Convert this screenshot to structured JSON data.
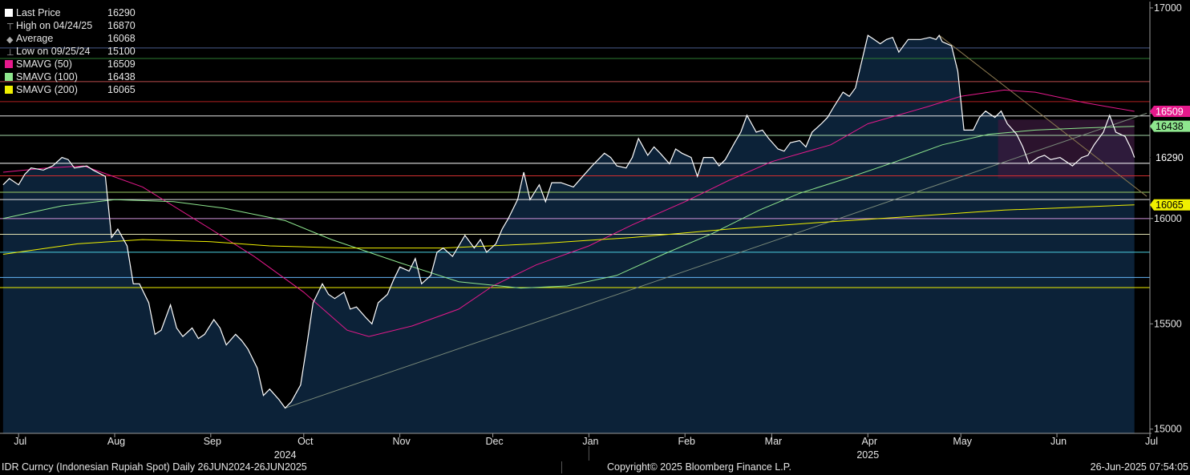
{
  "legend": [
    {
      "label": "Last Price",
      "value": "16290",
      "color": "#ffffff",
      "symbol": "square"
    },
    {
      "label": "High on 04/24/25",
      "value": "16870",
      "color": "#aaaaaa",
      "symbol": "high-marker-icon"
    },
    {
      "label": "Average",
      "value": "16068",
      "color": "#aaaaaa",
      "symbol": "average-marker-icon"
    },
    {
      "label": "Low on 09/25/24",
      "value": "15100",
      "color": "#aaaaaa",
      "symbol": "low-marker-icon"
    },
    {
      "label": "SMAVG (50)",
      "value": "16509",
      "color": "#e6198c",
      "symbol": "square"
    },
    {
      "label": "SMAVG (100)",
      "value": "16438",
      "color": "#8ee68e",
      "symbol": "square"
    },
    {
      "label": "SMAVG (200)",
      "value": "16065",
      "color": "#f0f000",
      "symbol": "square"
    }
  ],
  "footer": {
    "left": "IDR Curncy (Indonesian Rupiah Spot)  Daily 26JUN2024-26JUN2025",
    "center": "Copyright© 2025 Bloomberg Finance L.P.",
    "right": "26-Jun-2025 07:54:05"
  },
  "chart_data": {
    "type": "area",
    "ylim": [
      14980,
      17030
    ],
    "yticks": [
      15000,
      15500,
      16000,
      16500,
      17000
    ],
    "xlim": [
      "2024-06-25",
      "2025-07-01"
    ],
    "xticks": [
      {
        "date": "2024-07-01",
        "label": "Jul"
      },
      {
        "date": "2024-08-01",
        "label": "Aug"
      },
      {
        "date": "2024-09-01",
        "label": "Sep"
      },
      {
        "date": "2024-10-01",
        "label": "Oct"
      },
      {
        "date": "2024-11-01",
        "label": "Nov"
      },
      {
        "date": "2024-12-01",
        "label": "Dec"
      },
      {
        "date": "2025-01-01",
        "label": "Jan"
      },
      {
        "date": "2025-02-01",
        "label": "Feb"
      },
      {
        "date": "2025-03-01",
        "label": "Mar"
      },
      {
        "date": "2025-04-01",
        "label": "Apr"
      },
      {
        "date": "2025-05-01",
        "label": "May"
      },
      {
        "date": "2025-06-01",
        "label": "Jun"
      },
      {
        "date": "2025-07-01",
        "label": "Jul"
      }
    ],
    "year_labels": [
      {
        "date": "2024-09-25",
        "label": "2024"
      },
      {
        "date": "2025-04-01",
        "label": "2025"
      }
    ],
    "year_divider": "2025-01-01",
    "price_series": {
      "name": "Last Price",
      "color": "#ffffff",
      "fill": "#0c2238",
      "points": [
        [
          "2024-06-26",
          16160
        ],
        [
          "2024-06-28",
          16190
        ],
        [
          "2024-07-01",
          16160
        ],
        [
          "2024-07-03",
          16210
        ],
        [
          "2024-07-05",
          16240
        ],
        [
          "2024-07-09",
          16230
        ],
        [
          "2024-07-12",
          16250
        ],
        [
          "2024-07-15",
          16290
        ],
        [
          "2024-07-17",
          16280
        ],
        [
          "2024-07-19",
          16240
        ],
        [
          "2024-07-23",
          16250
        ],
        [
          "2024-07-25",
          16230
        ],
        [
          "2024-07-29",
          16200
        ],
        [
          "2024-07-31",
          15910
        ],
        [
          "2024-08-02",
          15950
        ],
        [
          "2024-08-05",
          15870
        ],
        [
          "2024-08-07",
          15690
        ],
        [
          "2024-08-09",
          15690
        ],
        [
          "2024-08-12",
          15600
        ],
        [
          "2024-08-14",
          15450
        ],
        [
          "2024-08-16",
          15470
        ],
        [
          "2024-08-19",
          15590
        ],
        [
          "2024-08-21",
          15480
        ],
        [
          "2024-08-23",
          15440
        ],
        [
          "2024-08-26",
          15480
        ],
        [
          "2024-08-28",
          15430
        ],
        [
          "2024-08-30",
          15450
        ],
        [
          "2024-09-02",
          15520
        ],
        [
          "2024-09-04",
          15480
        ],
        [
          "2024-09-06",
          15400
        ],
        [
          "2024-09-09",
          15450
        ],
        [
          "2024-09-11",
          15420
        ],
        [
          "2024-09-13",
          15380
        ],
        [
          "2024-09-16",
          15290
        ],
        [
          "2024-09-18",
          15160
        ],
        [
          "2024-09-20",
          15190
        ],
        [
          "2024-09-23",
          15140
        ],
        [
          "2024-09-25",
          15100
        ],
        [
          "2024-09-27",
          15130
        ],
        [
          "2024-09-30",
          15210
        ],
        [
          "2024-10-02",
          15400
        ],
        [
          "2024-10-04",
          15600
        ],
        [
          "2024-10-07",
          15690
        ],
        [
          "2024-10-09",
          15640
        ],
        [
          "2024-10-11",
          15620
        ],
        [
          "2024-10-14",
          15650
        ],
        [
          "2024-10-16",
          15570
        ],
        [
          "2024-10-18",
          15580
        ],
        [
          "2024-10-21",
          15530
        ],
        [
          "2024-10-23",
          15500
        ],
        [
          "2024-10-25",
          15600
        ],
        [
          "2024-10-28",
          15640
        ],
        [
          "2024-10-30",
          15710
        ],
        [
          "2024-11-01",
          15770
        ],
        [
          "2024-11-04",
          15750
        ],
        [
          "2024-11-06",
          15810
        ],
        [
          "2024-11-08",
          15690
        ],
        [
          "2024-11-11",
          15730
        ],
        [
          "2024-11-13",
          15840
        ],
        [
          "2024-11-15",
          15860
        ],
        [
          "2024-11-18",
          15820
        ],
        [
          "2024-11-20",
          15870
        ],
        [
          "2024-11-22",
          15920
        ],
        [
          "2024-11-25",
          15860
        ],
        [
          "2024-11-27",
          15900
        ],
        [
          "2024-11-29",
          15840
        ],
        [
          "2024-12-02",
          15880
        ],
        [
          "2024-12-04",
          15950
        ],
        [
          "2024-12-06",
          16000
        ],
        [
          "2024-12-09",
          16090
        ],
        [
          "2024-12-11",
          16220
        ],
        [
          "2024-12-13",
          16090
        ],
        [
          "2024-12-16",
          16160
        ],
        [
          "2024-12-18",
          16080
        ],
        [
          "2024-12-20",
          16170
        ],
        [
          "2024-12-23",
          16170
        ],
        [
          "2024-12-27",
          16150
        ],
        [
          "2024-12-30",
          16200
        ],
        [
          "2025-01-02",
          16250
        ],
        [
          "2025-01-06",
          16310
        ],
        [
          "2025-01-08",
          16290
        ],
        [
          "2025-01-10",
          16250
        ],
        [
          "2025-01-13",
          16240
        ],
        [
          "2025-01-15",
          16290
        ],
        [
          "2025-01-17",
          16380
        ],
        [
          "2025-01-20",
          16300
        ],
        [
          "2025-01-22",
          16340
        ],
        [
          "2025-01-24",
          16310
        ],
        [
          "2025-01-27",
          16260
        ],
        [
          "2025-01-29",
          16330
        ],
        [
          "2025-01-31",
          16310
        ],
        [
          "2025-02-03",
          16290
        ],
        [
          "2025-02-05",
          16200
        ],
        [
          "2025-02-07",
          16290
        ],
        [
          "2025-02-10",
          16290
        ],
        [
          "2025-02-12",
          16250
        ],
        [
          "2025-02-14",
          16280
        ],
        [
          "2025-02-17",
          16360
        ],
        [
          "2025-02-19",
          16410
        ],
        [
          "2025-02-21",
          16490
        ],
        [
          "2025-02-24",
          16410
        ],
        [
          "2025-02-26",
          16420
        ],
        [
          "2025-02-28",
          16380
        ],
        [
          "2025-03-03",
          16330
        ],
        [
          "2025-03-05",
          16320
        ],
        [
          "2025-03-07",
          16360
        ],
        [
          "2025-03-10",
          16370
        ],
        [
          "2025-03-12",
          16340
        ],
        [
          "2025-03-14",
          16410
        ],
        [
          "2025-03-17",
          16450
        ],
        [
          "2025-03-19",
          16480
        ],
        [
          "2025-03-21",
          16530
        ],
        [
          "2025-03-24",
          16600
        ],
        [
          "2025-03-26",
          16580
        ],
        [
          "2025-03-28",
          16620
        ],
        [
          "2025-04-01",
          16870
        ],
        [
          "2025-04-03",
          16850
        ],
        [
          "2025-04-05",
          16830
        ],
        [
          "2025-04-07",
          16850
        ],
        [
          "2025-04-09",
          16860
        ],
        [
          "2025-04-11",
          16790
        ],
        [
          "2025-04-14",
          16850
        ],
        [
          "2025-04-16",
          16850
        ],
        [
          "2025-04-18",
          16850
        ],
        [
          "2025-04-21",
          16860
        ],
        [
          "2025-04-23",
          16850
        ],
        [
          "2025-04-24",
          16870
        ],
        [
          "2025-04-25",
          16840
        ],
        [
          "2025-04-28",
          16820
        ],
        [
          "2025-04-30",
          16700
        ],
        [
          "2025-05-02",
          16420
        ],
        [
          "2025-05-05",
          16420
        ],
        [
          "2025-05-07",
          16480
        ],
        [
          "2025-05-09",
          16510
        ],
        [
          "2025-05-12",
          16480
        ],
        [
          "2025-05-14",
          16510
        ],
        [
          "2025-05-16",
          16450
        ],
        [
          "2025-05-19",
          16400
        ],
        [
          "2025-05-21",
          16340
        ],
        [
          "2025-05-23",
          16260
        ],
        [
          "2025-05-26",
          16290
        ],
        [
          "2025-05-28",
          16300
        ],
        [
          "2025-05-30",
          16280
        ],
        [
          "2025-06-02",
          16290
        ],
        [
          "2025-06-04",
          16270
        ],
        [
          "2025-06-06",
          16250
        ],
        [
          "2025-06-09",
          16290
        ],
        [
          "2025-06-11",
          16300
        ],
        [
          "2025-06-13",
          16350
        ],
        [
          "2025-06-16",
          16410
        ],
        [
          "2025-06-18",
          16490
        ],
        [
          "2025-06-20",
          16410
        ],
        [
          "2025-06-23",
          16390
        ],
        [
          "2025-06-25",
          16330
        ],
        [
          "2025-06-26",
          16290
        ]
      ]
    },
    "sma_series": [
      {
        "name": "SMAVG (50)",
        "color": "#e6198c",
        "points": [
          [
            "2024-06-26",
            16220
          ],
          [
            "2024-07-10",
            16240
          ],
          [
            "2024-07-22",
            16250
          ],
          [
            "2024-08-10",
            16150
          ],
          [
            "2024-09-01",
            15950
          ],
          [
            "2024-09-15",
            15820
          ],
          [
            "2024-10-01",
            15650
          ],
          [
            "2024-10-15",
            15470
          ],
          [
            "2024-10-22",
            15440
          ],
          [
            "2024-11-05",
            15490
          ],
          [
            "2024-11-20",
            15570
          ],
          [
            "2024-12-01",
            15680
          ],
          [
            "2024-12-15",
            15780
          ],
          [
            "2025-01-01",
            15870
          ],
          [
            "2025-01-15",
            15970
          ],
          [
            "2025-02-01",
            16080
          ],
          [
            "2025-02-15",
            16180
          ],
          [
            "2025-03-01",
            16270
          ],
          [
            "2025-03-20",
            16350
          ],
          [
            "2025-04-01",
            16450
          ],
          [
            "2025-04-20",
            16530
          ],
          [
            "2025-05-01",
            16580
          ],
          [
            "2025-05-15",
            16610
          ],
          [
            "2025-05-25",
            16600
          ],
          [
            "2025-06-10",
            16550
          ],
          [
            "2025-06-26",
            16509
          ]
        ]
      },
      {
        "name": "SMAVG (100)",
        "color": "#8ee68e",
        "points": [
          [
            "2024-06-26",
            16000
          ],
          [
            "2024-07-15",
            16060
          ],
          [
            "2024-08-01",
            16090
          ],
          [
            "2024-08-20",
            16080
          ],
          [
            "2024-09-05",
            16050
          ],
          [
            "2024-09-25",
            15990
          ],
          [
            "2024-10-10",
            15900
          ],
          [
            "2024-11-01",
            15790
          ],
          [
            "2024-11-20",
            15700
          ],
          [
            "2024-12-10",
            15670
          ],
          [
            "2024-12-25",
            15680
          ],
          [
            "2025-01-10",
            15730
          ],
          [
            "2025-01-25",
            15830
          ],
          [
            "2025-02-10",
            15930
          ],
          [
            "2025-02-25",
            16040
          ],
          [
            "2025-03-10",
            16120
          ],
          [
            "2025-03-25",
            16190
          ],
          [
            "2025-04-10",
            16270
          ],
          [
            "2025-04-25",
            16350
          ],
          [
            "2025-05-10",
            16400
          ],
          [
            "2025-05-25",
            16420
          ],
          [
            "2025-06-10",
            16430
          ],
          [
            "2025-06-26",
            16438
          ]
        ]
      },
      {
        "name": "SMAVG (200)",
        "color": "#f0f000",
        "points": [
          [
            "2024-06-26",
            15830
          ],
          [
            "2024-07-20",
            15880
          ],
          [
            "2024-08-10",
            15900
          ],
          [
            "2024-09-01",
            15890
          ],
          [
            "2024-09-20",
            15870
          ],
          [
            "2024-10-15",
            15860
          ],
          [
            "2024-11-15",
            15860
          ],
          [
            "2024-12-15",
            15880
          ],
          [
            "2025-01-15",
            15910
          ],
          [
            "2025-02-15",
            15950
          ],
          [
            "2025-03-15",
            15980
          ],
          [
            "2025-04-15",
            16010
          ],
          [
            "2025-05-15",
            16040
          ],
          [
            "2025-06-01",
            16050
          ],
          [
            "2025-06-26",
            16065
          ]
        ]
      }
    ],
    "horizontal_levels": [
      {
        "value": 16810,
        "color": "#4a5c8c"
      },
      {
        "value": 16760,
        "color": "#2e7d32"
      },
      {
        "value": 16650,
        "color": "#b84d4d"
      },
      {
        "value": 16555,
        "color": "#b02020"
      },
      {
        "value": 16487,
        "color": "#e6e6e6"
      },
      {
        "value": 16395,
        "color": "#a5d6a7"
      },
      {
        "value": 16262,
        "color": "#ffffff"
      },
      {
        "value": 16203,
        "color": "#d32f2f"
      },
      {
        "value": 16125,
        "color": "#9ccc65"
      },
      {
        "value": 16090,
        "color": "#e6e6e6"
      },
      {
        "value": 16000,
        "color": "#ce93d8"
      },
      {
        "value": 15925,
        "color": "#e0e0b0"
      },
      {
        "value": 15840,
        "color": "#4dd0e1"
      },
      {
        "value": 15720,
        "color": "#64b5f6"
      },
      {
        "value": 15672,
        "color": "#f0f000"
      }
    ],
    "trendlines": [
      {
        "from": [
          "2024-09-25",
          15100
        ],
        "to": [
          "2025-06-30",
          16500
        ],
        "color": "#7a8a7a"
      },
      {
        "from": [
          "2025-04-24",
          16870
        ],
        "to": [
          "2025-06-30",
          16105
        ],
        "color": "#8c7a50"
      }
    ],
    "highlight_box": {
      "from": [
        "2025-05-13",
        16190
      ],
      "to": [
        "2025-06-26",
        16470
      ],
      "color": "#3a1a3c"
    },
    "right_labels": [
      {
        "value": 16509,
        "text": "16509",
        "bg": "#e6198c",
        "fg": "#ffffff"
      },
      {
        "value": 16438,
        "text": "16438",
        "bg": "#8ee68e",
        "fg": "#000000"
      },
      {
        "value": 16290,
        "text": "16290",
        "bg": "#000000",
        "fg": "#ffffff"
      },
      {
        "value": 16065,
        "text": "16065",
        "bg": "#f0f000",
        "fg": "#000000"
      }
    ]
  }
}
